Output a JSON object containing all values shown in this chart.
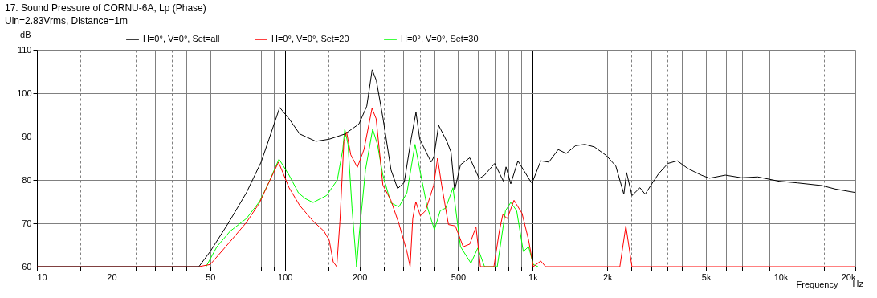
{
  "chart_data": {
    "type": "line",
    "title": "17. Sound Pressure of CORNU-6A, Lp (Phase)",
    "subtitle": "Uin=2.83Vrms, Distance=1m",
    "xlabel": "Frequency",
    "ylabel": "dB",
    "annotations": [
      "Hz"
    ],
    "log": "x",
    "grid": true,
    "legend": "top left",
    "xlim": [
      10,
      20000
    ],
    "ylim": [
      60,
      110
    ],
    "xticks": [
      10,
      {
        "value": 15,
        "label": null
      },
      20,
      {
        "value": 25,
        "label": null
      },
      {
        "value": 30,
        "label": null
      },
      {
        "value": 35,
        "label": null
      },
      {
        "value": 40,
        "label": null
      },
      50,
      {
        "value": 60,
        "label": null
      },
      {
        "value": 70,
        "label": null
      },
      {
        "value": 80,
        "label": null
      },
      {
        "value": 90,
        "label": null
      },
      100,
      {
        "value": 150,
        "label": null
      },
      200,
      {
        "value": 250,
        "label": null
      },
      {
        "value": 300,
        "label": null
      },
      {
        "value": 350,
        "label": null
      },
      {
        "value": 400,
        "label": null
      },
      500,
      {
        "value": 600,
        "label": null
      },
      {
        "value": 700,
        "label": null
      },
      {
        "value": 800,
        "label": null
      },
      {
        "value": 900,
        "label": null
      },
      {
        "value": 1000,
        "label": "1k"
      },
      {
        "value": 1500,
        "label": null
      },
      {
        "value": 2000,
        "label": "2k"
      },
      {
        "value": 2500,
        "label": null
      },
      {
        "value": 3000,
        "label": null
      },
      {
        "value": 3500,
        "label": null
      },
      {
        "value": 4000,
        "label": null
      },
      {
        "value": 5000,
        "label": "5k"
      },
      {
        "value": 6000,
        "label": null
      },
      {
        "value": 7000,
        "label": null
      },
      {
        "value": 8000,
        "label": null
      },
      {
        "value": 9000,
        "label": null
      },
      {
        "value": 10000,
        "label": "10k"
      },
      {
        "value": 15000,
        "label": null
      },
      {
        "value": 20000,
        "label": "20k"
      }
    ],
    "yticks": [
      60,
      70,
      80,
      90,
      100,
      110
    ],
    "series": [
      {
        "name": "H=0°, V=0°, Set=all",
        "color": "#000000",
        "x": [
          10,
          45,
          50,
          59.4,
          69.9,
          80.2,
          86.3,
          95.3,
          104,
          114.8,
          133.4,
          151,
          175,
          199,
          214,
          225,
          234,
          249,
          268,
          285,
          303,
          323,
          338,
          350,
          389,
          399,
          417,
          451,
          468,
          484,
          511,
          557,
          608,
          639,
          702,
          761,
          780,
          815,
          871,
          986,
          1000,
          1077,
          1161,
          1266,
          1364,
          1489,
          1624,
          1772,
          1982,
          2162,
          2330,
          2389,
          2512,
          2706,
          2840,
          3021,
          3215,
          3509,
          3828,
          4227,
          4785,
          5157,
          5985,
          6953,
          8070,
          9850,
          11720,
          14660,
          16600,
          20000
        ],
        "values": [
          60,
          60,
          63.5,
          70.2,
          77,
          84.1,
          89.4,
          96.7,
          94.1,
          90.6,
          88.9,
          89.4,
          90.6,
          92.9,
          97,
          105.4,
          102.9,
          94.1,
          82.3,
          78,
          79.4,
          89.4,
          95.6,
          89.4,
          84.1,
          85.3,
          92.6,
          88.8,
          86.4,
          77.6,
          83.5,
          85.1,
          80.3,
          81.1,
          83.8,
          79.7,
          83,
          79.1,
          84.4,
          79.4,
          79.7,
          84.4,
          84.1,
          87,
          86.1,
          87.9,
          88.2,
          87.6,
          85.6,
          83.2,
          76.7,
          81.7,
          76.4,
          78.2,
          76.7,
          79.1,
          81.4,
          83.8,
          84.4,
          82.6,
          81.1,
          80.4,
          81.1,
          80.5,
          80.7,
          79.7,
          79.3,
          78.7,
          77.9,
          77.1
        ]
      },
      {
        "name": "H=0°, V=0°, Set=20",
        "color": "#ff0000",
        "x": [
          10,
          45,
          50,
          60.2,
          70,
          79,
          85.2,
          94.3,
          104,
          114.8,
          130,
          143.8,
          151,
          156.7,
          161.9,
          166.8,
          173,
          177.4,
          184.4,
          196,
          208.5,
          224.7,
          233.5,
          248.5,
          267.7,
          288.5,
          310.6,
          320,
          328,
          337.5,
          352,
          369.6,
          398.5,
          413,
          429,
          457,
          487,
          524,
          557,
          590,
          615,
          697,
          733,
          757,
          789,
          840,
          905,
          962,
          1005,
          1077,
          1127,
          2245,
          2374,
          2512,
          20000
        ],
        "values": [
          60,
          60,
          60.5,
          65.8,
          70.2,
          74.7,
          78.8,
          84.1,
          78.2,
          74.1,
          70.5,
          68.2,
          66.1,
          61.1,
          60,
          70.5,
          88.8,
          91.1,
          85.8,
          82.9,
          87,
          96.5,
          94.1,
          78.8,
          75.3,
          69.9,
          63.5,
          60,
          71.1,
          75,
          71.7,
          72.9,
          78.8,
          85,
          78.8,
          69.7,
          69.4,
          64.6,
          65.2,
          69.2,
          60,
          60,
          68.2,
          72,
          71.1,
          75.3,
          72.3,
          66.1,
          60,
          61.3,
          60,
          60,
          69.4,
          60,
          60
        ]
      },
      {
        "name": "H=0°, V=0°, Set=30",
        "color": "#00ff00",
        "x": [
          48.1,
          53.2,
          60.2,
          70,
          79,
          85.2,
          94.7,
          104,
          113.5,
          120.8,
          130,
          147.3,
          162.8,
          171.2,
          174.5,
          179.8,
          186.6,
          194.7,
          199.6,
          211.4,
          226,
          236.3,
          248.5,
          267.7,
          288.5,
          310.6,
          335,
          352,
          374,
          401,
          423.4,
          445.5,
          476.6,
          511,
          563,
          600,
          639,
          719,
          776,
          815,
          861,
          916,
          962,
          1005,
          1050
        ],
        "values": [
          60,
          64.6,
          68.2,
          71.1,
          75,
          78.8,
          84.8,
          81.1,
          77,
          75.7,
          74.8,
          76.4,
          80,
          87,
          91.7,
          88.2,
          73.5,
          60,
          67.6,
          82.3,
          91.7,
          88.2,
          81.1,
          74.7,
          73.8,
          77,
          88.2,
          81.7,
          74.1,
          68.5,
          72.9,
          73.5,
          78.2,
          64.6,
          60.8,
          64.3,
          60,
          60,
          72.9,
          74.8,
          72.9,
          63.5,
          64.6,
          60.5,
          60
        ]
      }
    ]
  }
}
